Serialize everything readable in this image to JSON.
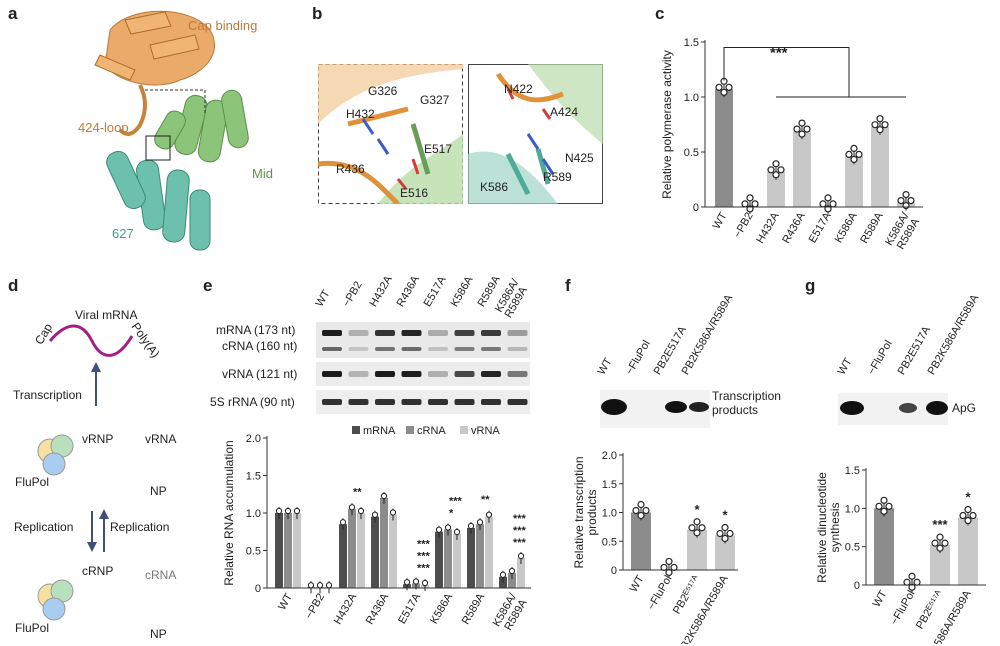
{
  "panels": {
    "a": {
      "label": "a",
      "cap_binding": "Cap binding",
      "loop_424": "424-loop",
      "mid": "Mid",
      "d627": "627"
    },
    "b": {
      "label": "b",
      "left_residues": [
        "G326",
        "G327",
        "H432",
        "E517",
        "R436",
        "E516"
      ],
      "right_residues": [
        "N422",
        "A424",
        "N425",
        "K586",
        "R589"
      ]
    },
    "c": {
      "label": "c"
    },
    "d": {
      "label": "d",
      "viral_mrna": "Viral mRNA",
      "cap": "Cap",
      "polya": "Poly(A)",
      "transcription": "Transcription",
      "vrnp": "vRNP",
      "vrna": "vRNA",
      "flupol": "FluPol",
      "np": "NP",
      "replication1": "Replication",
      "replication2": "Replication",
      "crnp": "cRNP",
      "crna": "cRNA",
      "flupol2": "FluPol",
      "np2": "NP"
    },
    "e": {
      "label": "e",
      "lanes": [
        "WT",
        "−PB2",
        "H432A",
        "R436A",
        "E517A",
        "K586A",
        "R589A",
        "K586A/\nR589A"
      ],
      "gel_rows": [
        "mRNA (173 nt)",
        "cRNA (160 nt)",
        "vRNA (121 nt)",
        "5S rRNA (90 nt)"
      ]
    },
    "f": {
      "label": "f",
      "lanes": [
        "WT",
        "−FluPol",
        "PB2E517A",
        "PB2K586A/R589A"
      ],
      "band_label": "Transcription\nproducts"
    },
    "g": {
      "label": "g",
      "lanes": [
        "WT",
        "−FluPol",
        "PB2E517A",
        "PB2K586A/R589A"
      ],
      "band_label": "ApG"
    }
  },
  "chart_data": [
    {
      "panel": "c",
      "type": "bar",
      "categories": [
        "WT",
        "−PB2",
        "H432A",
        "R436A",
        "E517A",
        "K586A",
        "R589A",
        "K586A/\nR589A"
      ],
      "values": [
        1.07,
        0.01,
        0.32,
        0.69,
        0.01,
        0.46,
        0.73,
        0.04
      ],
      "ylabel": "Relative polymerase activity",
      "ylim": [
        0,
        1.5
      ],
      "yticks": [
        0,
        0.5,
        1.0,
        1.5
      ],
      "significance": "***",
      "colors": [
        "#8c8c8c",
        "#c8c8c8"
      ]
    },
    {
      "panel": "e",
      "type": "bar",
      "categories": [
        "WT",
        "−PB2",
        "H432A",
        "R436A",
        "E517A",
        "K586A",
        "R589A",
        "K586A/\nR589A"
      ],
      "series": [
        {
          "name": "mRNA",
          "values": [
            1.0,
            0.01,
            0.85,
            0.95,
            0.05,
            0.75,
            0.8,
            0.15
          ],
          "color": "#4d4d4d"
        },
        {
          "name": "cRNA",
          "values": [
            1.0,
            0.01,
            1.05,
            1.2,
            0.06,
            0.78,
            0.85,
            0.2
          ],
          "color": "#8c8c8c"
        },
        {
          "name": "vRNA",
          "values": [
            1.0,
            0.01,
            1.0,
            0.98,
            0.04,
            0.72,
            0.95,
            0.4
          ],
          "color": "#c8c8c8"
        }
      ],
      "ylabel": "Relative RNA accumulation",
      "ylim": [
        0,
        2.0
      ],
      "yticks": [
        0,
        0.5,
        1.0,
        1.5,
        2.0
      ],
      "stars": [
        "",
        "",
        "**",
        "",
        "***\n***\n***",
        "***\n*",
        "**",
        "***\n***\n***"
      ]
    },
    {
      "panel": "f",
      "type": "bar",
      "categories": [
        "WT",
        "−FluPol",
        "PB2E517A",
        "PB2K586A/R589A"
      ],
      "values": [
        1.0,
        0.01,
        0.7,
        0.6
      ],
      "ylabel": "Relative transcription\nproducts",
      "ylim": [
        0,
        2.0
      ],
      "yticks": [
        0,
        0.5,
        1.0,
        1.5,
        2.0
      ],
      "stars": [
        "",
        "",
        "*",
        "*"
      ]
    },
    {
      "panel": "g",
      "type": "bar",
      "categories": [
        "WT",
        "−FluPol",
        "PB2E517A",
        "PB2K586A/R589A"
      ],
      "values": [
        1.0,
        0.01,
        0.52,
        0.88
      ],
      "ylabel": "Relative dinucleotide\nsynthesis",
      "ylim": [
        0,
        1.5
      ],
      "yticks": [
        0,
        0.5,
        1.0,
        1.5
      ],
      "stars": [
        "",
        "",
        "***",
        "*"
      ]
    }
  ]
}
